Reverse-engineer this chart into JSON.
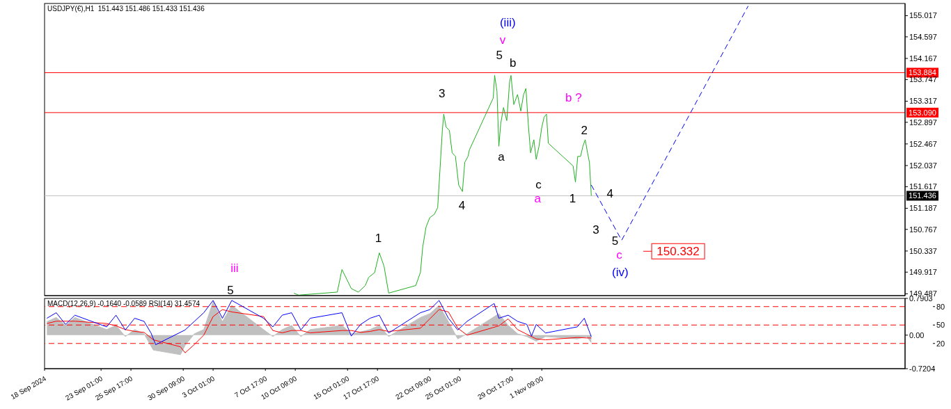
{
  "chart_data": [
    {
      "type": "line",
      "title": "USDJPY(€),H1  151.443 151.486 151.433 151.436",
      "marker": "none",
      "tick_labels": "y",
      "xlim": [
        "2024-09-18T00:00",
        "2024-12-03T19:00"
      ],
      "ylim": [
        149.45,
        155.26
      ],
      "yticks": [
        155.017,
        154.597,
        154.167,
        153.747,
        153.317,
        152.897,
        152.467,
        152.037,
        151.617,
        151.187,
        150.767,
        150.337,
        149.917,
        149.487
      ],
      "series": [
        {
          "color": "#22b022",
          "x": [
            "2024-10-10T06:00",
            "2024-10-10T16:00",
            "2024-10-14T03:00",
            "2024-10-14T13:00",
            "2024-10-14T23:00",
            "2024-10-15T09:00",
            "2024-10-16T00:00",
            "2024-10-16T15:00",
            "2024-10-16T22:00",
            "2024-10-17T11:00",
            "2024-10-17T21:00",
            "2024-10-18T07:00",
            "2024-10-18T17:00",
            "2024-10-21T03:00",
            "2024-10-21T13:00",
            "2024-10-21T18:00",
            "2024-10-22T01:00",
            "2024-10-22T09:00",
            "2024-10-22T19:00",
            "2024-10-23T02:00",
            "2024-10-23T07:00",
            "2024-10-23T12:00",
            "2024-10-23T15:00",
            "2024-10-23T20:00",
            "2024-10-24T03:00",
            "2024-10-24T09:00",
            "2024-10-24T16:00",
            "2024-10-24T23:00",
            "2024-10-25T07:00",
            "2024-10-25T12:00",
            "2024-10-25T19:00",
            "2024-10-25T22:00",
            "2024-10-28T01:00",
            "2024-10-28T04:00",
            "2024-10-28T09:00",
            "2024-10-28T13:00",
            "2024-10-28T17:00",
            "2024-10-28T23:00",
            "2024-10-29T06:00",
            "2024-10-29T12:00",
            "2024-10-29T15:00",
            "2024-10-29T21:00",
            "2024-10-30T05:00",
            "2024-10-30T12:00",
            "2024-10-30T18:00",
            "2024-10-30T23:00",
            "2024-10-31T04:00",
            "2024-10-31T09:00",
            "2024-10-31T16:00",
            "2024-10-31T21:00",
            "2024-11-01T03:00",
            "2024-11-01T09:00",
            "2024-11-01T14:00",
            "2024-11-01T19:00",
            "2024-11-01T23:00",
            "2024-11-04T04:00",
            "2024-11-04T09:00",
            "2024-11-04T14:00",
            "2024-11-04T20:00",
            "2024-11-05T01:00",
            "2024-11-05T06:00",
            "2024-11-05T11:00",
            "2024-11-05T15:00",
            "2024-11-05T19:00"
          ],
          "values": [
            149.5,
            149.46,
            149.52,
            149.97,
            149.78,
            149.59,
            149.52,
            149.65,
            149.81,
            149.91,
            150.3,
            150.04,
            149.5,
            149.65,
            149.91,
            150.42,
            150.81,
            151.0,
            151.07,
            151.2,
            151.97,
            152.74,
            153.06,
            152.8,
            152.74,
            152.29,
            152.22,
            151.65,
            151.52,
            152.1,
            152.22,
            152.35,
            153.38,
            153.83,
            153.51,
            152.42,
            152.87,
            153.19,
            152.93,
            153.7,
            153.83,
            153.25,
            153.45,
            153.12,
            153.45,
            153.57,
            152.87,
            152.29,
            152.55,
            152.16,
            152.42,
            152.8,
            153.0,
            153.06,
            152.48,
            152.03,
            151.71,
            152.22,
            152.22,
            152.42,
            152.55,
            152.29,
            152.1,
            151.44
          ]
        },
        {
          "color": "#0000ff",
          "line_style": "dashed",
          "x": [
            "2024-11-05T19:00",
            "2024-11-08T12:00",
            "2024-11-19T19:00"
          ],
          "values": [
            151.65,
            150.55,
            155.21
          ]
        }
      ],
      "ref_lines": [
        {
          "axis": "y",
          "value": 153.884,
          "label": "153.884",
          "color": "#ff0000"
        },
        {
          "axis": "y",
          "value": 153.09,
          "label": "153.090",
          "color": "#ff0000"
        },
        {
          "axis": "y",
          "value": 151.436,
          "label": "151.436",
          "color": "#c0c0c0"
        }
      ],
      "annotations": [
        "(iii)",
        "v",
        "5",
        "b",
        "3",
        "b ?",
        "2",
        "a",
        "c",
        "a",
        "1",
        "4",
        "4",
        "3",
        "1",
        "5",
        "c",
        "150.332",
        "(iv)",
        "iii",
        "5"
      ]
    },
    {
      "type": "line",
      "title": "MACD(12,26,9) -0.1640 -0.0589 RSI(14) 31.4574",
      "marker": "none",
      "xlim": [
        "2024-09-18T00:00",
        "2024-12-03T19:00"
      ],
      "xticks": [
        {
          "value": "2024-09-18T00:00",
          "label": "18 Sep 2024"
        },
        {
          "value": "2024-09-23T01:00",
          "label": "23 Sep 01:00"
        },
        {
          "value": "2024-09-25T17:00",
          "label": "25 Sep 17:00"
        },
        {
          "value": "2024-09-30T09:00",
          "label": "30 Sep 09:00"
        },
        {
          "value": "2024-10-03T01:00",
          "label": "3 Oct 01:00"
        },
        {
          "value": "2024-10-07T17:00",
          "label": "7 Oct 17:00"
        },
        {
          "value": "2024-10-10T09:00",
          "label": "10 Oct 09:00"
        },
        {
          "value": "2024-10-15T01:00",
          "label": "15 Oct 01:00"
        },
        {
          "value": "2024-10-17T17:00",
          "label": "17 Oct 17:00"
        },
        {
          "value": "2024-10-22T09:00",
          "label": "22 Oct 09:00"
        },
        {
          "value": "2024-10-25T01:00",
          "label": "25 Oct 01:00"
        },
        {
          "value": "2024-10-29T17:00",
          "label": "29 Oct 17:00"
        },
        {
          "value": "2024-11-01T09:00",
          "label": "1 Nov 09:00"
        }
      ],
      "ylim": [
        -0.7204,
        0.7903
      ],
      "yticks": [
        0.7903,
        {
          "value": 0,
          "label": "0.00"
        },
        -0.7204
      ],
      "y2lim": [
        -21,
        93.3
      ],
      "y2ticks": [
        20,
        50,
        80
      ],
      "series": [
        {
          "type": "area",
          "color": "#c0c0c0",
          "x": [
            "2024-09-18T05:00",
            "2024-09-19T01:00",
            "2024-09-19T21:00",
            "2024-09-20T17:00",
            "2024-09-23T13:00",
            "2024-09-24T09:00",
            "2024-09-25T05:00",
            "2024-09-26T01:00",
            "2024-09-26T21:00",
            "2024-09-27T17:00",
            "2024-09-30T03:00",
            "2024-09-30T13:00",
            "2024-10-01T09:00",
            "2024-10-02T05:00",
            "2024-10-03T01:00",
            "2024-10-03T21:00",
            "2024-10-04T17:00",
            "2024-10-07T13:00",
            "2024-10-08T09:00",
            "2024-10-09T05:00",
            "2024-10-10T01:00",
            "2024-10-10T21:00",
            "2024-10-11T17:00",
            "2024-10-14T13:00",
            "2024-10-15T09:00",
            "2024-10-16T05:00",
            "2024-10-17T01:00",
            "2024-10-17T21:00",
            "2024-10-18T17:00",
            "2024-10-21T13:00",
            "2024-10-22T09:00",
            "2024-10-23T05:00",
            "2024-10-24T01:00",
            "2024-10-24T21:00",
            "2024-10-25T17:00",
            "2024-10-28T13:00",
            "2024-10-29T09:00",
            "2024-10-30T05:00",
            "2024-10-31T01:00",
            "2024-10-31T21:00",
            "2024-11-01T17:00",
            "2024-11-04T13:00",
            "2024-11-05T09:00",
            "2024-11-05T19:00"
          ],
          "values": [
            0.29,
            0.38,
            0.21,
            0.38,
            0.12,
            0.21,
            -0.03,
            0.12,
            0.03,
            -0.32,
            -0.42,
            -0.22,
            0.03,
            0.12,
            0.72,
            0.29,
            0.64,
            0.12,
            -0.03,
            0.12,
            0.21,
            -0.03,
            0.12,
            0.21,
            0.03,
            0.07,
            0.12,
            0.21,
            -0.03,
            0.38,
            0.46,
            0.64,
            0.29,
            -0.08,
            0.03,
            0.46,
            0.21,
            0.03,
            -0.03,
            -0.13,
            -0.03,
            -0.08,
            -0.03,
            -0.16
          ]
        },
        {
          "color": "#ff0000",
          "x": [
            "2024-09-18T05:00",
            "2024-09-19T01:00",
            "2024-09-19T21:00",
            "2024-09-20T17:00",
            "2024-09-23T13:00",
            "2024-09-24T09:00",
            "2024-09-25T05:00",
            "2024-09-26T01:00",
            "2024-09-26T21:00",
            "2024-09-27T17:00",
            "2024-09-30T03:00",
            "2024-09-30T13:00",
            "2024-10-01T09:00",
            "2024-10-02T05:00",
            "2024-10-03T01:00",
            "2024-10-03T21:00",
            "2024-10-04T17:00",
            "2024-10-07T13:00",
            "2024-10-08T09:00",
            "2024-10-09T05:00",
            "2024-10-10T01:00",
            "2024-10-10T21:00",
            "2024-10-11T17:00",
            "2024-10-14T13:00",
            "2024-10-15T09:00",
            "2024-10-16T05:00",
            "2024-10-17T01:00",
            "2024-10-17T21:00",
            "2024-10-18T17:00",
            "2024-10-21T13:00",
            "2024-10-22T09:00",
            "2024-10-23T05:00",
            "2024-10-24T01:00",
            "2024-10-24T21:00",
            "2024-10-25T17:00",
            "2024-10-28T13:00",
            "2024-10-29T09:00",
            "2024-10-30T05:00",
            "2024-10-31T01:00",
            "2024-10-31T21:00",
            "2024-11-01T17:00",
            "2024-11-04T13:00",
            "2024-11-05T09:00",
            "2024-11-05T19:00"
          ],
          "values": [
            0.25,
            0.3,
            0.3,
            0.3,
            0.25,
            0.2,
            0.12,
            0.08,
            0.06,
            -0.1,
            -0.25,
            -0.38,
            -0.2,
            0.0,
            0.4,
            0.55,
            0.5,
            0.4,
            0.1,
            0.05,
            0.1,
            0.1,
            0.05,
            0.1,
            0.1,
            0.06,
            0.08,
            0.12,
            0.08,
            0.15,
            0.35,
            0.55,
            0.5,
            0.15,
            0.0,
            0.2,
            0.35,
            0.12,
            0.02,
            -0.08,
            -0.1,
            -0.05,
            -0.06,
            -0.06
          ]
        },
        {
          "color": "#0000ff",
          "axis": "y2",
          "x": [
            "2024-09-18T05:00",
            "2024-09-19T01:00",
            "2024-09-19T21:00",
            "2024-09-20T17:00",
            "2024-09-23T13:00",
            "2024-09-24T09:00",
            "2024-09-25T05:00",
            "2024-09-26T01:00",
            "2024-09-26T21:00",
            "2024-09-27T12:00",
            "2024-09-27T22:00",
            "2024-09-30T13:00",
            "2024-10-01T09:00",
            "2024-10-02T05:00",
            "2024-10-03T01:00",
            "2024-10-03T21:00",
            "2024-10-04T17:00",
            "2024-10-07T13:00",
            "2024-10-08T09:00",
            "2024-10-09T05:00",
            "2024-10-10T01:00",
            "2024-10-10T21:00",
            "2024-10-11T17:00",
            "2024-10-14T13:00",
            "2024-10-15T09:00",
            "2024-10-16T05:00",
            "2024-10-17T01:00",
            "2024-10-17T21:00",
            "2024-10-18T17:00",
            "2024-10-21T13:00",
            "2024-10-22T09:00",
            "2024-10-23T05:00",
            "2024-10-24T01:00",
            "2024-10-24T21:00",
            "2024-10-25T17:00",
            "2024-10-28T03:00",
            "2024-10-28T13:00",
            "2024-10-29T09:00",
            "2024-10-30T05:00",
            "2024-10-31T01:00",
            "2024-10-31T11:00",
            "2024-10-31T21:00",
            "2024-11-01T17:00",
            "2024-11-04T13:00",
            "2024-11-05T04:00",
            "2024-11-05T19:00"
          ],
          "values": [
            61,
            70,
            51,
            66,
            47,
            66,
            42,
            61,
            56,
            37,
            18,
            42,
            56,
            70,
            90,
            61,
            90,
            61,
            47,
            66,
            70,
            42,
            61,
            70,
            32,
            51,
            61,
            66,
            37,
            70,
            75,
            90,
            61,
            42,
            56,
            85,
            61,
            66,
            56,
            51,
            32,
            51,
            37,
            47,
            61,
            31
          ]
        }
      ],
      "ref_lines": [
        {
          "axis": "y2",
          "value": 80,
          "color": "#ff0000",
          "line_style": "dashed"
        },
        {
          "axis": "y2",
          "value": 50,
          "color": "#ff0000",
          "line_style": "dashed"
        },
        {
          "axis": "y2",
          "value": 20,
          "color": "#ff0000",
          "line_style": "dashed"
        }
      ]
    }
  ]
}
